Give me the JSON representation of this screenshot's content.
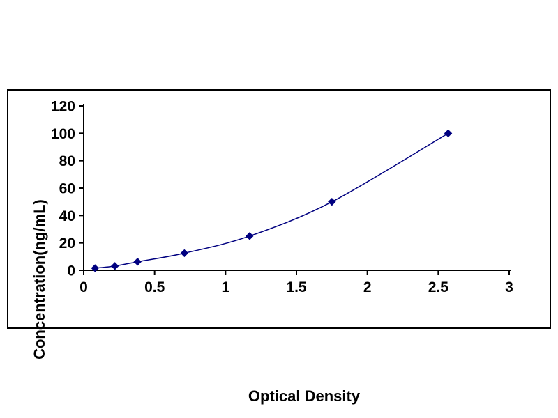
{
  "chart_data": {
    "type": "scatter",
    "title": "",
    "xlabel": "Optical Density",
    "ylabel": "Concentration(ng/mL)",
    "series": [
      {
        "name": "standard-curve",
        "x": [
          0.08,
          0.22,
          0.38,
          0.71,
          1.17,
          1.75,
          2.57
        ],
        "y": [
          1.56,
          3.12,
          6.25,
          12.5,
          25,
          50,
          100
        ]
      }
    ],
    "xlim": [
      0,
      3
    ],
    "ylim": [
      0,
      120
    ],
    "x_ticks": [
      0,
      0.5,
      1,
      1.5,
      2,
      2.5,
      3
    ],
    "y_ticks": [
      0,
      20,
      40,
      60,
      80,
      100,
      120
    ],
    "grid": false,
    "legend": "none",
    "line_color": "#000080",
    "marker_color": "#000080",
    "marker": "diamond",
    "axis_color": "#000000",
    "tick_label_color": "#000000"
  },
  "styles": {
    "background": "#ffffff",
    "frame_border_color": "#000000"
  }
}
